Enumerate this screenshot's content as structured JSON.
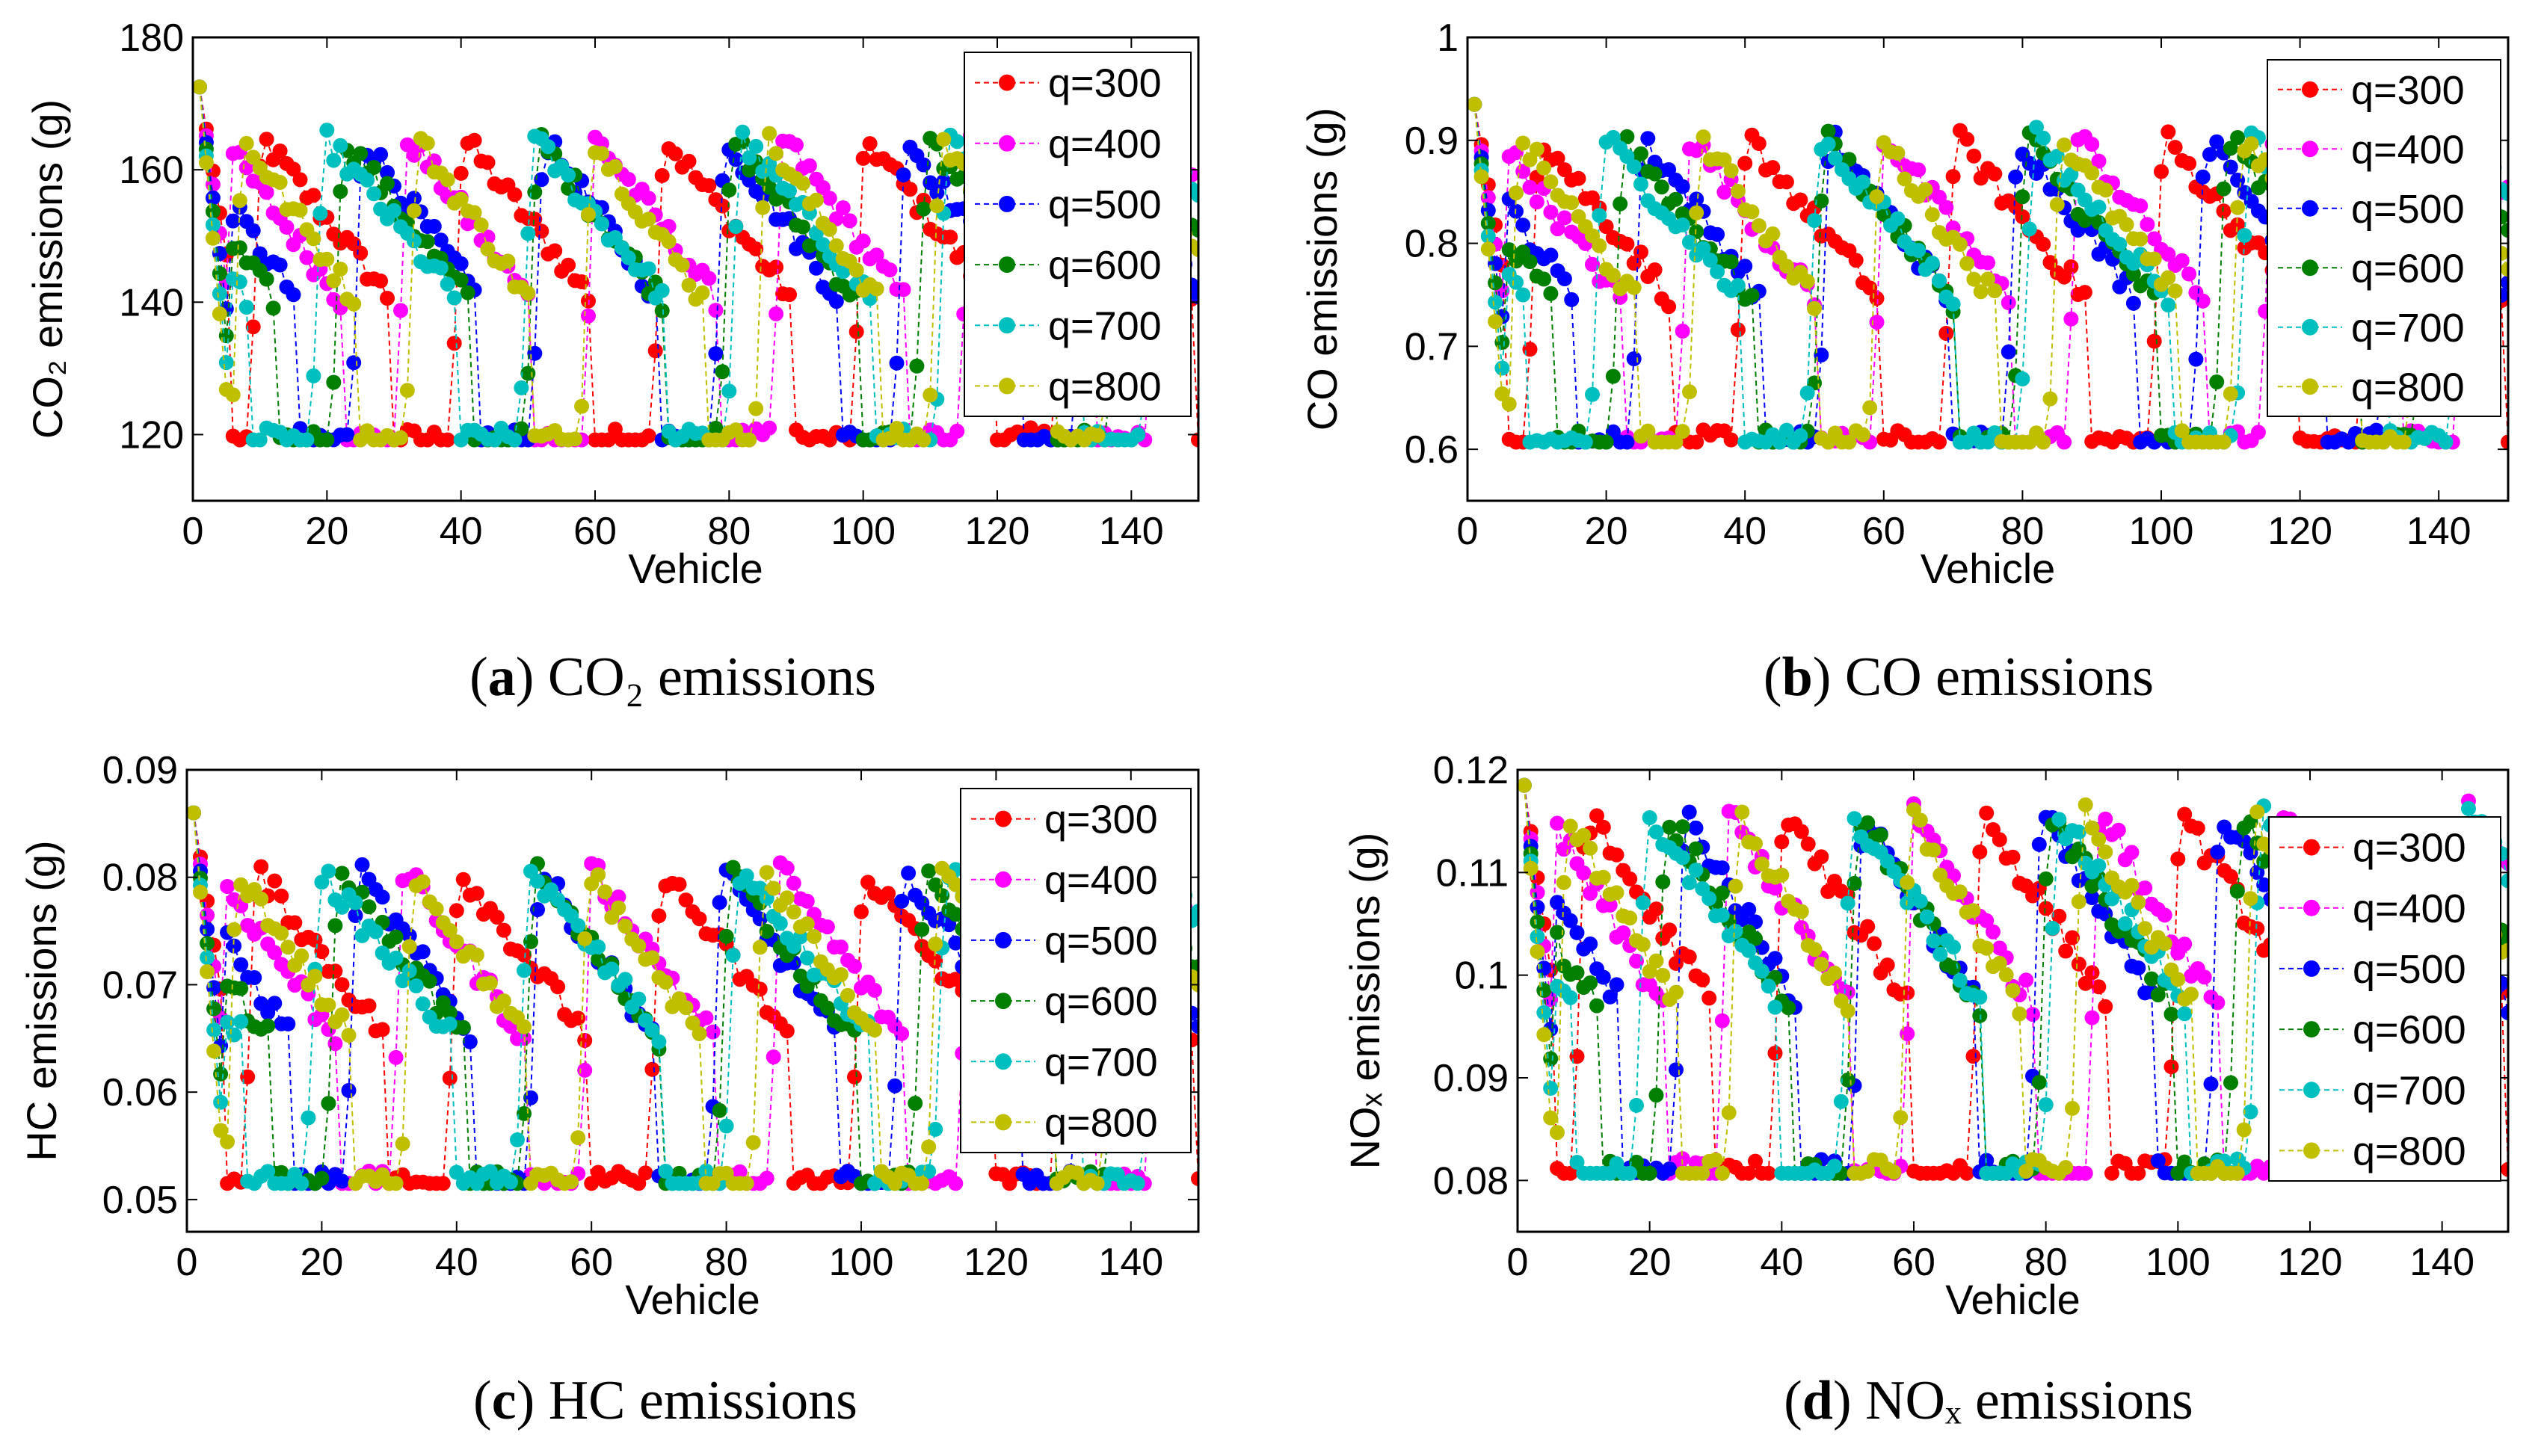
{
  "colors": {
    "q300": "#ff0000",
    "q400": "#ff00ff",
    "q500": "#0000ff",
    "q600": "#007f00",
    "q700": "#00bfbf",
    "q800": "#bfbf00"
  },
  "chart_data": [
    {
      "type": "line",
      "id": "a",
      "xlabel": "Vehicle",
      "ylabel": "CO₂ emissions (g)",
      "xlim": [
        0,
        150
      ],
      "ylim": [
        110,
        180
      ],
      "xticks": [
        0,
        20,
        40,
        60,
        80,
        100,
        120,
        140
      ],
      "yticks": [
        120,
        140,
        160,
        180
      ],
      "ytick_labels": [
        "120",
        "140",
        "160",
        "180"
      ],
      "legend": [
        "q=300",
        "q=400",
        "q=500",
        "q=600",
        "q=700",
        "q=800"
      ],
      "legend_position": "top-right",
      "ymin": 119.2,
      "ypeak": 165,
      "ystart": 172.5,
      "caption": {
        "letter": "a",
        "text": "CO₂ emissions"
      }
    },
    {
      "type": "line",
      "id": "b",
      "xlabel": "Vehicle",
      "ylabel": "CO emissions (g)",
      "xlim": [
        0,
        150
      ],
      "ylim": [
        0.55,
        1.0
      ],
      "xticks": [
        0,
        20,
        40,
        60,
        80,
        100,
        120,
        140
      ],
      "yticks": [
        0.6,
        0.7,
        0.8,
        0.9,
        1.0
      ],
      "ytick_labels": [
        "0.6",
        "0.7",
        "0.8",
        "0.9",
        "1"
      ],
      "legend": [
        "q=300",
        "q=400",
        "q=500",
        "q=600",
        "q=700",
        "q=800"
      ],
      "legend_position": "top-right",
      "ymin": 0.607,
      "ypeak": 0.905,
      "ystart": 0.935,
      "caption": {
        "letter": "b",
        "text": "CO emissions"
      }
    },
    {
      "type": "line",
      "id": "c",
      "xlabel": "Vehicle",
      "ylabel": "HC emissions (g)",
      "xlim": [
        0,
        150
      ],
      "ylim": [
        0.047,
        0.09
      ],
      "xticks": [
        0,
        20,
        40,
        60,
        80,
        100,
        120,
        140
      ],
      "yticks": [
        0.05,
        0.06,
        0.07,
        0.08,
        0.09
      ],
      "ytick_labels": [
        "0.05",
        "0.06",
        "0.07",
        "0.08",
        "0.09"
      ],
      "legend": [
        "q=300",
        "q=400",
        "q=500",
        "q=600",
        "q=700",
        "q=800"
      ],
      "legend_position": "top-right",
      "ymin": 0.0515,
      "ypeak": 0.0808,
      "ystart": 0.086,
      "caption": {
        "letter": "c",
        "text": "HC emissions"
      }
    },
    {
      "type": "line",
      "id": "d",
      "xlabel": "Vehicle",
      "ylabel": "NOₓ emissions (g)",
      "xlim": [
        0,
        150
      ],
      "ylim": [
        0.075,
        0.12
      ],
      "xticks": [
        0,
        20,
        40,
        60,
        80,
        100,
        120,
        140
      ],
      "yticks": [
        0.08,
        0.09,
        0.1,
        0.11,
        0.12
      ],
      "ytick_labels": [
        "0.08",
        "0.09",
        "0.1",
        "0.11",
        "0.12"
      ],
      "legend": [
        "q=300",
        "q=400",
        "q=500",
        "q=600",
        "q=700",
        "q=800"
      ],
      "legend_position": "top-right",
      "ymin": 0.0807,
      "ypeak": 0.116,
      "ystart": 0.1185,
      "caption": {
        "letter": "d",
        "text": "NOₓ emissions"
      }
    }
  ]
}
